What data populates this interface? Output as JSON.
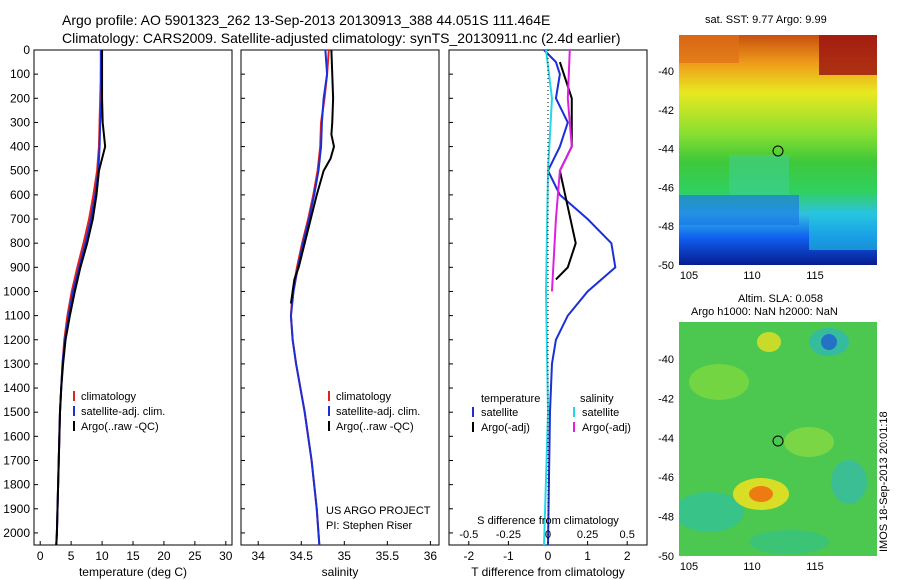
{
  "header": {
    "line1": "Argo profile: AO 5901323_262 13-Sep-2013 20130913_388 44.051S 111.464E",
    "line2": "Climatology: CARS2009. Satellite-adjusted climatology: synTS_20130911.nc (2.4d earlier)"
  },
  "colors": {
    "climatology": "#e8201c",
    "satellite": "#1a2fd6",
    "argo": "#000000",
    "sal_satellite": "#22d8e8",
    "sal_argo": "#e020e0"
  },
  "chart_data": [
    {
      "type": "line",
      "xlabel": "temperature (deg C)",
      "ylabel": "",
      "xlim": [
        -1,
        31
      ],
      "ylim": [
        2050,
        0
      ],
      "xticks": [
        0,
        5,
        10,
        15,
        20,
        25,
        30
      ],
      "yticks": [
        0,
        100,
        200,
        300,
        400,
        500,
        600,
        700,
        800,
        900,
        1000,
        1100,
        1200,
        1300,
        1400,
        1500,
        1600,
        1700,
        1800,
        1900,
        2000
      ],
      "legend": [
        "climatology",
        "satellite-adj. clim.",
        "Argo(..raw -QC)"
      ],
      "series": [
        {
          "name": "climatology",
          "color": "#e8201c",
          "points": [
            [
              9.9,
              0
            ],
            [
              9.8,
              100
            ],
            [
              9.7,
              200
            ],
            [
              9.6,
              300
            ],
            [
              9.5,
              400
            ],
            [
              9.2,
              500
            ],
            [
              8.6,
              600
            ],
            [
              7.9,
              700
            ],
            [
              7.0,
              800
            ],
            [
              6.0,
              900
            ],
            [
              5.1,
              1000
            ],
            [
              4.4,
              1100
            ],
            [
              3.9,
              1200
            ],
            [
              3.6,
              1300
            ],
            [
              3.4,
              1400
            ],
            [
              3.2,
              1500
            ],
            [
              3.1,
              1600
            ],
            [
              3.0,
              1700
            ],
            [
              2.9,
              1800
            ],
            [
              2.8,
              1900
            ],
            [
              2.7,
              2000
            ],
            [
              2.6,
              2050
            ]
          ]
        },
        {
          "name": "satellite-adj. clim.",
          "color": "#1a2fd6",
          "points": [
            [
              9.8,
              0
            ],
            [
              9.8,
              100
            ],
            [
              9.9,
              200
            ],
            [
              9.7,
              300
            ],
            [
              9.6,
              400
            ],
            [
              9.4,
              500
            ],
            [
              8.9,
              600
            ],
            [
              8.2,
              700
            ],
            [
              7.3,
              800
            ],
            [
              6.3,
              900
            ],
            [
              5.3,
              1000
            ],
            [
              4.6,
              1100
            ],
            [
              4.0,
              1200
            ],
            [
              3.6,
              1300
            ],
            [
              3.4,
              1400
            ],
            [
              3.2,
              1500
            ],
            [
              3.1,
              1600
            ],
            [
              3.0,
              1700
            ],
            [
              2.9,
              1800
            ],
            [
              2.8,
              1900
            ],
            [
              2.7,
              2000
            ],
            [
              2.6,
              2050
            ]
          ]
        },
        {
          "name": "Argo(..raw -QC)",
          "color": "#000000",
          "points": [
            [
              10.0,
              0
            ],
            [
              10.0,
              100
            ],
            [
              10.0,
              200
            ],
            [
              10.1,
              300
            ],
            [
              10.5,
              400
            ],
            [
              10.0,
              450
            ],
            [
              9.5,
              500
            ],
            [
              9.1,
              600
            ],
            [
              8.5,
              700
            ],
            [
              7.6,
              800
            ],
            [
              6.5,
              900
            ],
            [
              5.6,
              1000
            ],
            [
              4.8,
              1100
            ],
            [
              4.1,
              1200
            ],
            [
              3.7,
              1300
            ],
            [
              3.4,
              1400
            ],
            [
              3.2,
              1500
            ],
            [
              3.1,
              1600
            ],
            [
              3.0,
              1700
            ],
            [
              2.9,
              1800
            ],
            [
              2.8,
              1900
            ],
            [
              2.7,
              2000
            ],
            [
              2.6,
              2050
            ]
          ]
        }
      ]
    },
    {
      "type": "line",
      "xlabel": "salinity",
      "ylabel": "",
      "xlim": [
        33.8,
        36.1
      ],
      "ylim": [
        2050,
        0
      ],
      "xticks": [
        34,
        34.5,
        35,
        35.5,
        36
      ],
      "xticklabels": [
        "34",
        "34.5",
        "35",
        "35.5",
        "36"
      ],
      "legend": [
        "climatology",
        "satellite-adj. clim.",
        "Argo(..raw -QC)"
      ],
      "annotation": [
        "US ARGO PROJECT",
        "PI: Stephen Riser"
      ],
      "series": [
        {
          "name": "climatology",
          "color": "#e8201c",
          "points": [
            [
              34.82,
              0
            ],
            [
              34.8,
              100
            ],
            [
              34.77,
              200
            ],
            [
              34.73,
              300
            ],
            [
              34.72,
              400
            ],
            [
              34.69,
              500
            ],
            [
              34.64,
              600
            ],
            [
              34.58,
              700
            ],
            [
              34.51,
              800
            ],
            [
              34.45,
              900
            ],
            [
              34.4,
              1000
            ],
            [
              34.38,
              1100
            ],
            [
              34.4,
              1200
            ],
            [
              34.44,
              1300
            ],
            [
              34.49,
              1400
            ],
            [
              34.54,
              1500
            ],
            [
              34.58,
              1600
            ],
            [
              34.62,
              1700
            ],
            [
              34.65,
              1800
            ],
            [
              34.68,
              1900
            ],
            [
              34.7,
              2000
            ],
            [
              34.71,
              2050
            ]
          ]
        },
        {
          "name": "satellite-adj. clim.",
          "color": "#1a2fd6",
          "points": [
            [
              34.78,
              0
            ],
            [
              34.8,
              100
            ],
            [
              34.76,
              200
            ],
            [
              34.74,
              300
            ],
            [
              34.73,
              400
            ],
            [
              34.7,
              500
            ],
            [
              34.65,
              600
            ],
            [
              34.59,
              700
            ],
            [
              34.52,
              800
            ],
            [
              34.46,
              900
            ],
            [
              34.41,
              1000
            ],
            [
              34.38,
              1100
            ],
            [
              34.4,
              1200
            ],
            [
              34.44,
              1300
            ],
            [
              34.49,
              1400
            ],
            [
              34.54,
              1500
            ],
            [
              34.58,
              1600
            ],
            [
              34.62,
              1700
            ],
            [
              34.65,
              1800
            ],
            [
              34.68,
              1900
            ],
            [
              34.7,
              2000
            ],
            [
              34.71,
              2050
            ]
          ]
        },
        {
          "name": "Argo(..raw -QC)",
          "color": "#000000",
          "points": [
            [
              34.85,
              0
            ],
            [
              34.86,
              100
            ],
            [
              34.87,
              200
            ],
            [
              34.86,
              300
            ],
            [
              34.85,
              350
            ],
            [
              34.88,
              400
            ],
            [
              34.84,
              450
            ],
            [
              34.76,
              500
            ],
            [
              34.68,
              600
            ],
            [
              34.61,
              700
            ],
            [
              34.54,
              800
            ],
            [
              34.47,
              900
            ],
            [
              34.42,
              950
            ],
            [
              34.4,
              1000
            ],
            [
              34.38,
              1050
            ]
          ]
        }
      ]
    },
    {
      "type": "line",
      "xlabel": "T difference from climatology",
      "xlabel2": "S difference from climatology",
      "xlim": [
        -2.5,
        2.5
      ],
      "ylim": [
        2050,
        0
      ],
      "xticks": [
        -2,
        -1,
        0,
        1,
        2
      ],
      "xticks2": [
        -0.5,
        -0.25,
        0,
        0.25,
        0.5
      ],
      "legend": {
        "temperature": [
          "satellite",
          "Argo(-adj)"
        ],
        "salinity": [
          "satellite",
          "Argo(-adj)"
        ],
        "header_t": "temperature",
        "header_s": "salinity"
      },
      "series": [
        {
          "name": "satellite",
          "color": "#1a2fd6",
          "points": [
            [
              -0.1,
              0
            ],
            [
              0.2,
              50
            ],
            [
              0.3,
              100
            ],
            [
              0.2,
              200
            ],
            [
              0.5,
              300
            ],
            [
              0.3,
              400
            ],
            [
              0.0,
              500
            ],
            [
              0.3,
              600
            ],
            [
              1.0,
              700
            ],
            [
              1.6,
              800
            ],
            [
              1.7,
              900
            ],
            [
              1.0,
              1000
            ],
            [
              0.5,
              1100
            ],
            [
              0.2,
              1200
            ],
            [
              0.1,
              1300
            ],
            [
              0.05,
              1500
            ],
            [
              0.0,
              2050
            ]
          ]
        },
        {
          "name": "Argo(-adj)",
          "color": "#000000",
          "points": [
            [
              0.3,
              50
            ],
            [
              0.6,
              200
            ],
            [
              0.6,
              400
            ],
            [
              0.3,
              500
            ],
            [
              0.5,
              650
            ],
            [
              0.7,
              800
            ],
            [
              0.5,
              900
            ],
            [
              0.2,
              950
            ]
          ]
        },
        {
          "name": "satellite",
          "color": "#22d8e8",
          "points": [
            [
              -0.05,
              0
            ],
            [
              0.1,
              200
            ],
            [
              0.0,
              500
            ],
            [
              -0.05,
              1000
            ],
            [
              0.0,
              1500
            ],
            [
              -0.1,
              2050
            ]
          ]
        },
        {
          "name": "Argo(-adj)",
          "color": "#e020e0",
          "points": [
            [
              0.55,
              0
            ],
            [
              0.5,
              200
            ],
            [
              0.6,
              400
            ],
            [
              0.3,
              500
            ],
            [
              0.2,
              700
            ],
            [
              0.1,
              1000
            ]
          ]
        }
      ]
    }
  ],
  "maps": {
    "sst": {
      "title": "sat. SST: 9.77 Argo: 9.99",
      "yticks": [
        "-40",
        "-42",
        "-44",
        "-46",
        "-48",
        "-50"
      ],
      "xticks": [
        "105",
        "110",
        "115"
      ]
    },
    "sla": {
      "title1": "Altim. SLA: 0.058",
      "title2": "Argo h1000: NaN h2000: NaN",
      "yticks": [
        "-40",
        "-42",
        "-44",
        "-46",
        "-48",
        "-50"
      ],
      "xticks": [
        "105",
        "110",
        "115"
      ]
    }
  },
  "side_stamp": "IMOS 18-Sep-2013 20:01:18"
}
